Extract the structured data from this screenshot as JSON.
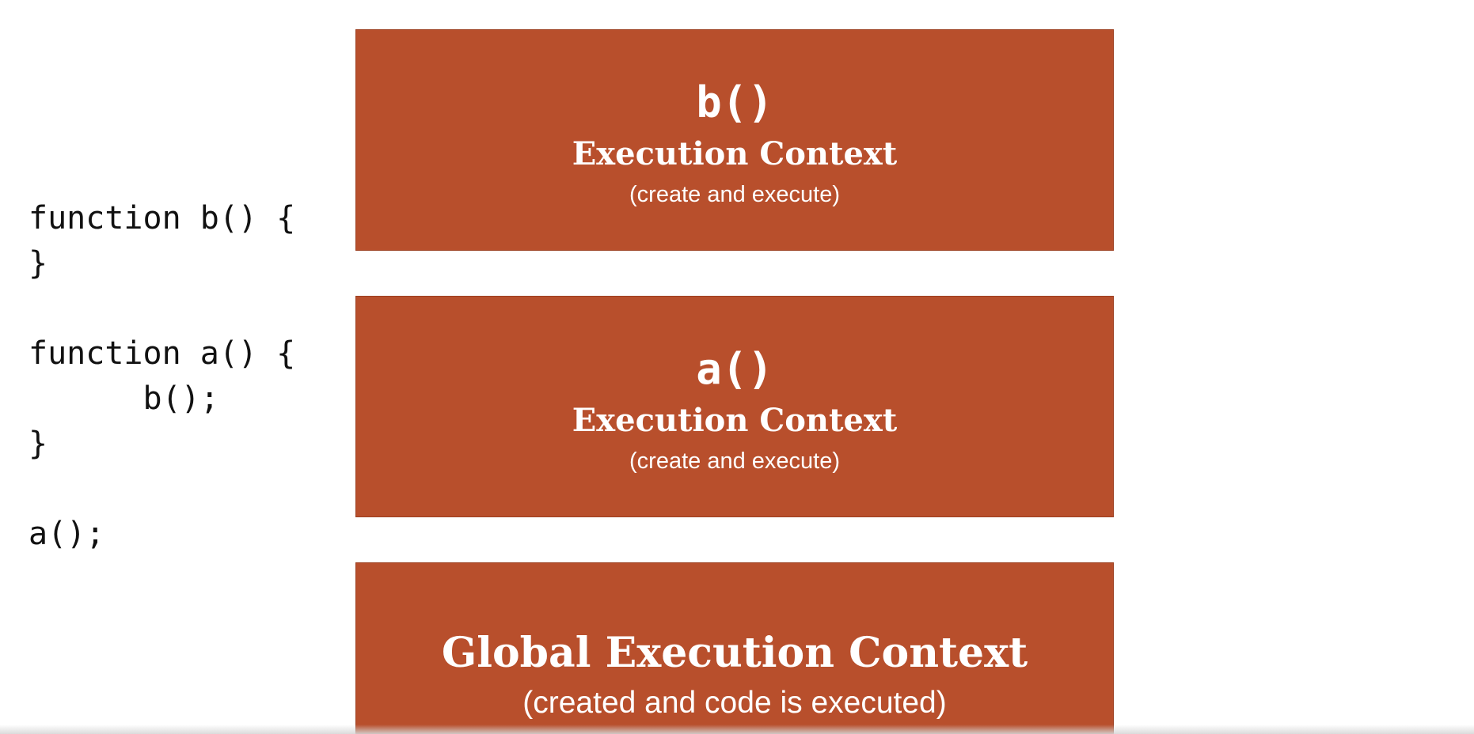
{
  "code": {
    "lines": [
      "function b() {",
      "}",
      "",
      "function a() {",
      "      b();",
      "}",
      "",
      "a();"
    ]
  },
  "stack": {
    "b": {
      "name": "b()",
      "title": "Execution Context",
      "subtitle": "(create and execute)"
    },
    "a": {
      "name": "a()",
      "title": "Execution Context",
      "subtitle": "(create and execute)"
    },
    "global": {
      "title": "Global Execution Context",
      "subtitle": "(created and code is executed)"
    }
  },
  "colors": {
    "box_fill": "#b84f2c",
    "box_text": "#ffffff",
    "code_text": "#111111",
    "background": "#ffffff"
  }
}
